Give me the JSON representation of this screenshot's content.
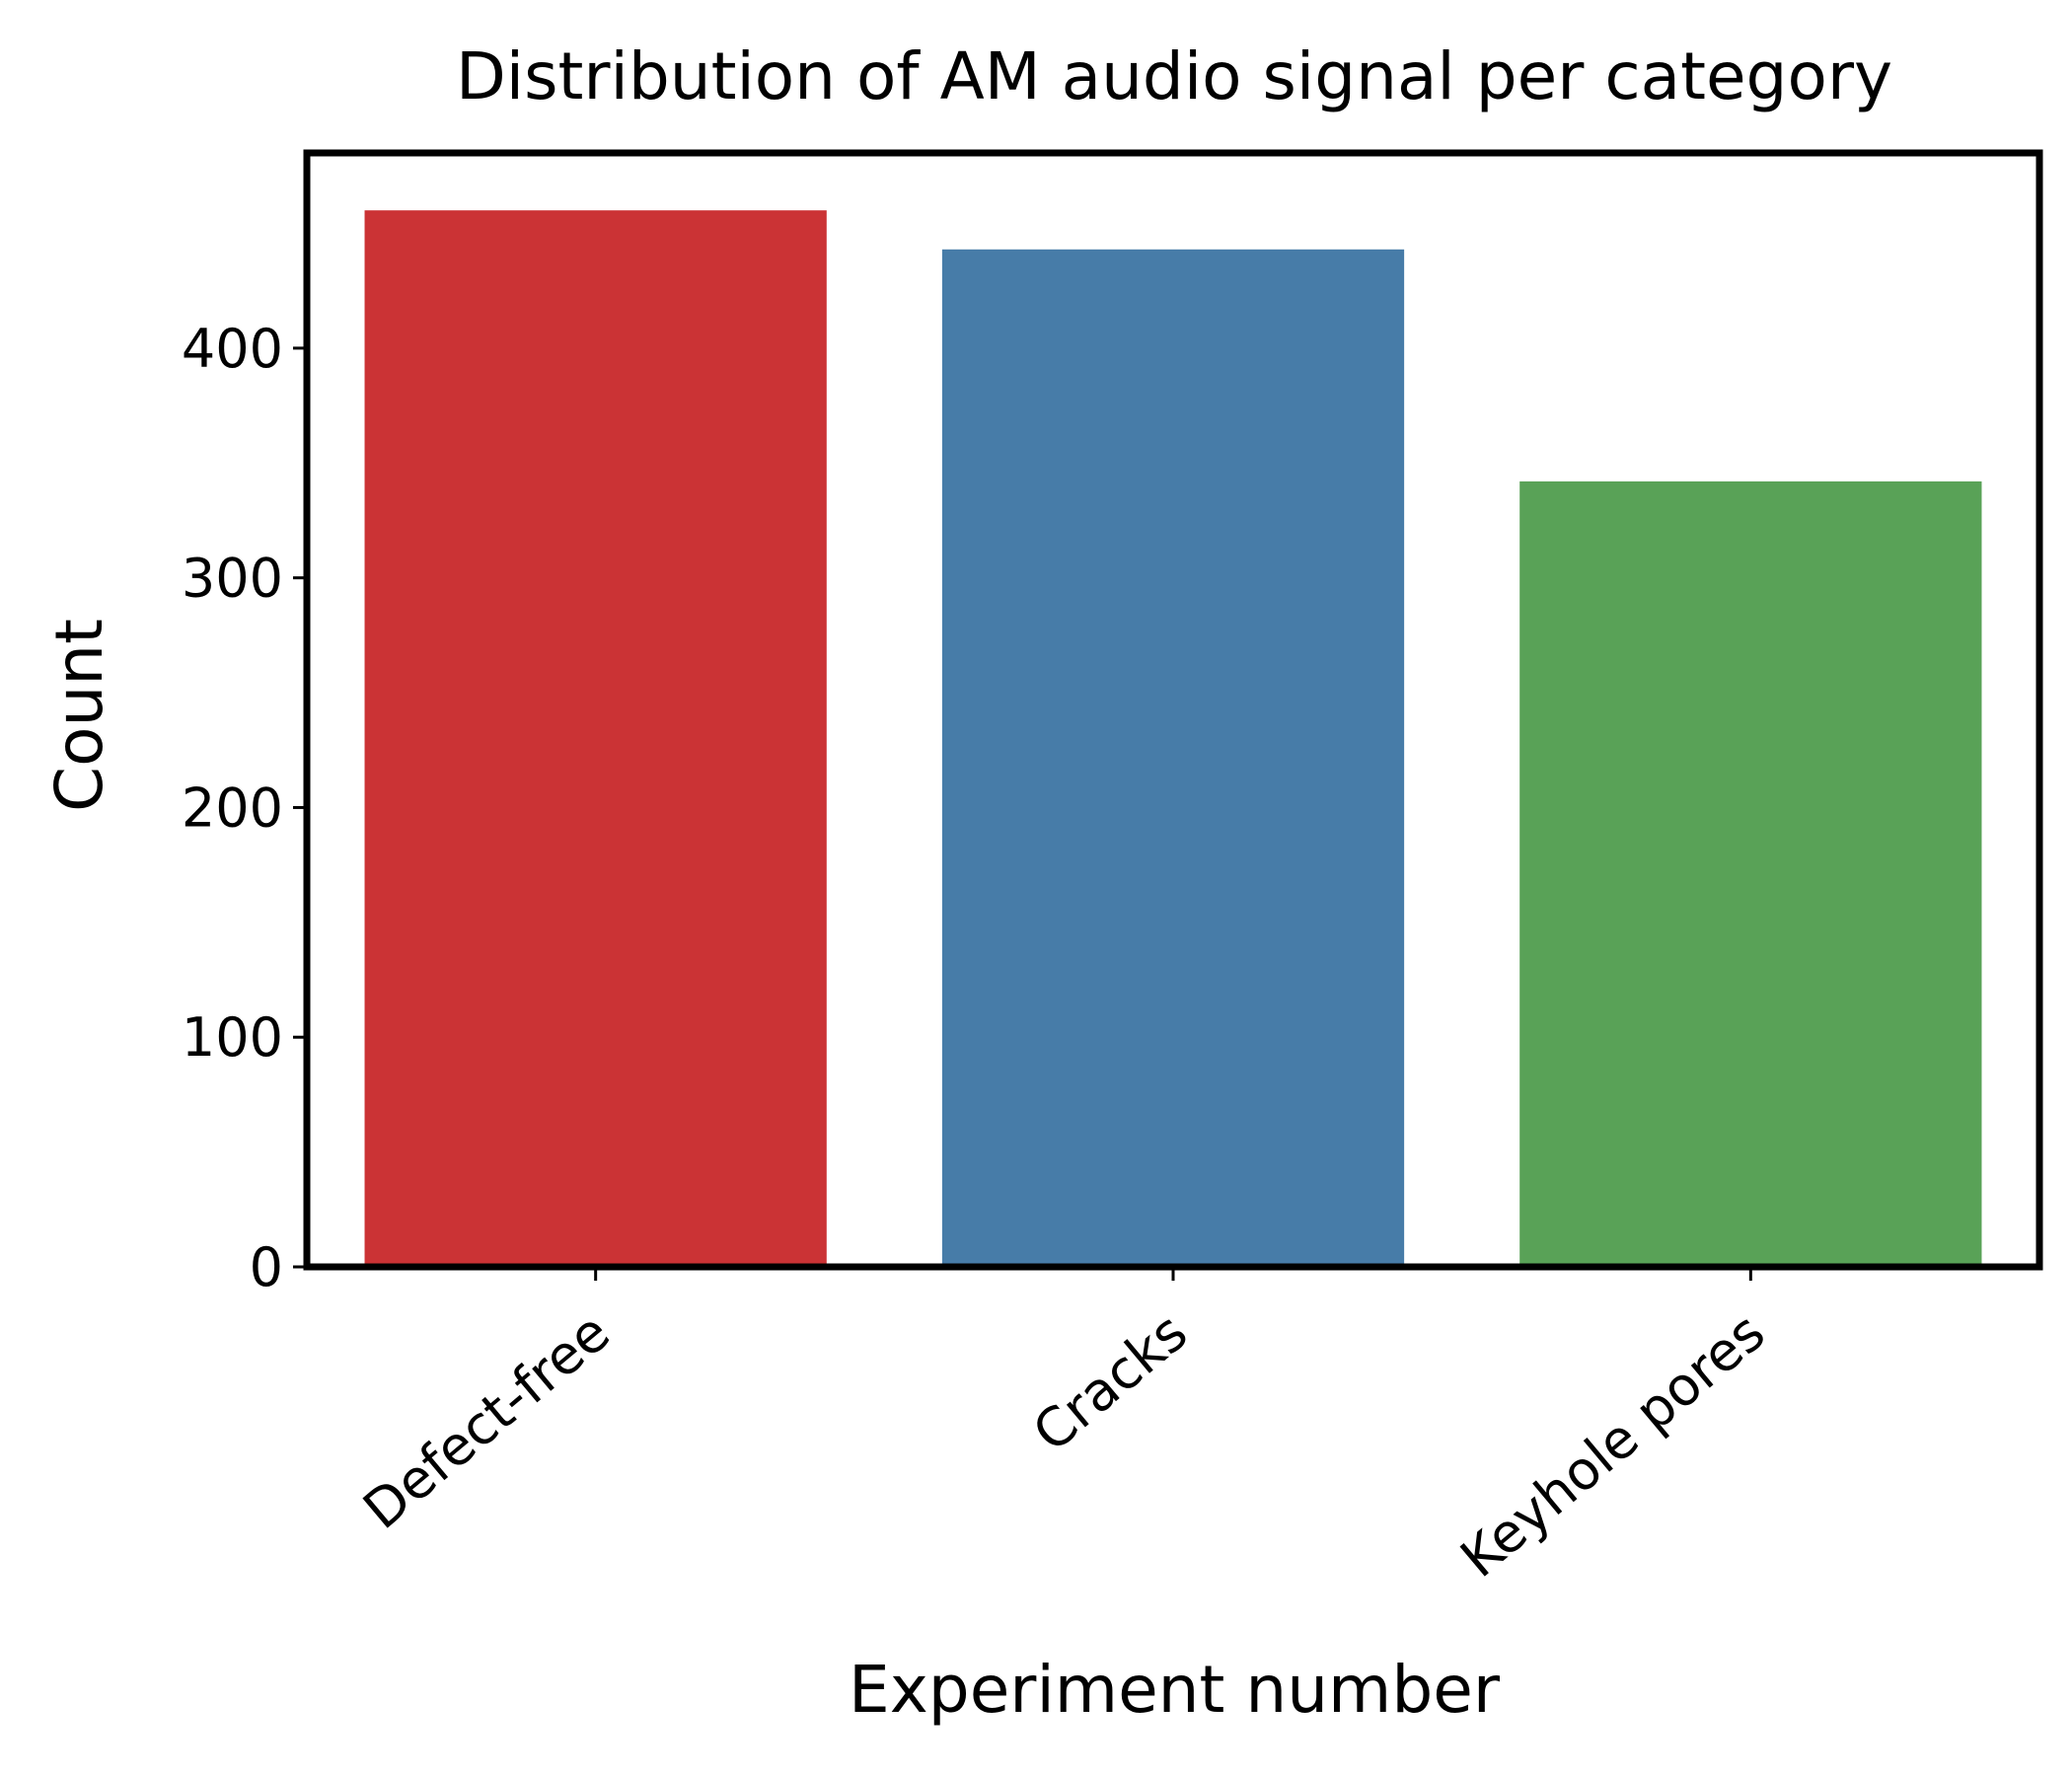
{
  "chart_data": {
    "type": "bar",
    "title": "Distribution of AM audio signal per category",
    "xlabel": "Experiment number",
    "ylabel": "Count",
    "categories": [
      "Defect-free",
      "Cracks",
      "Keyhole pores"
    ],
    "values": [
      460,
      443,
      342
    ],
    "colors": [
      "#cb3335",
      "#477ca8",
      "#59a257"
    ],
    "ylim": [
      0,
      485
    ],
    "yticks": [
      0,
      100,
      200,
      300,
      400
    ],
    "grid": false,
    "legend": "none"
  }
}
